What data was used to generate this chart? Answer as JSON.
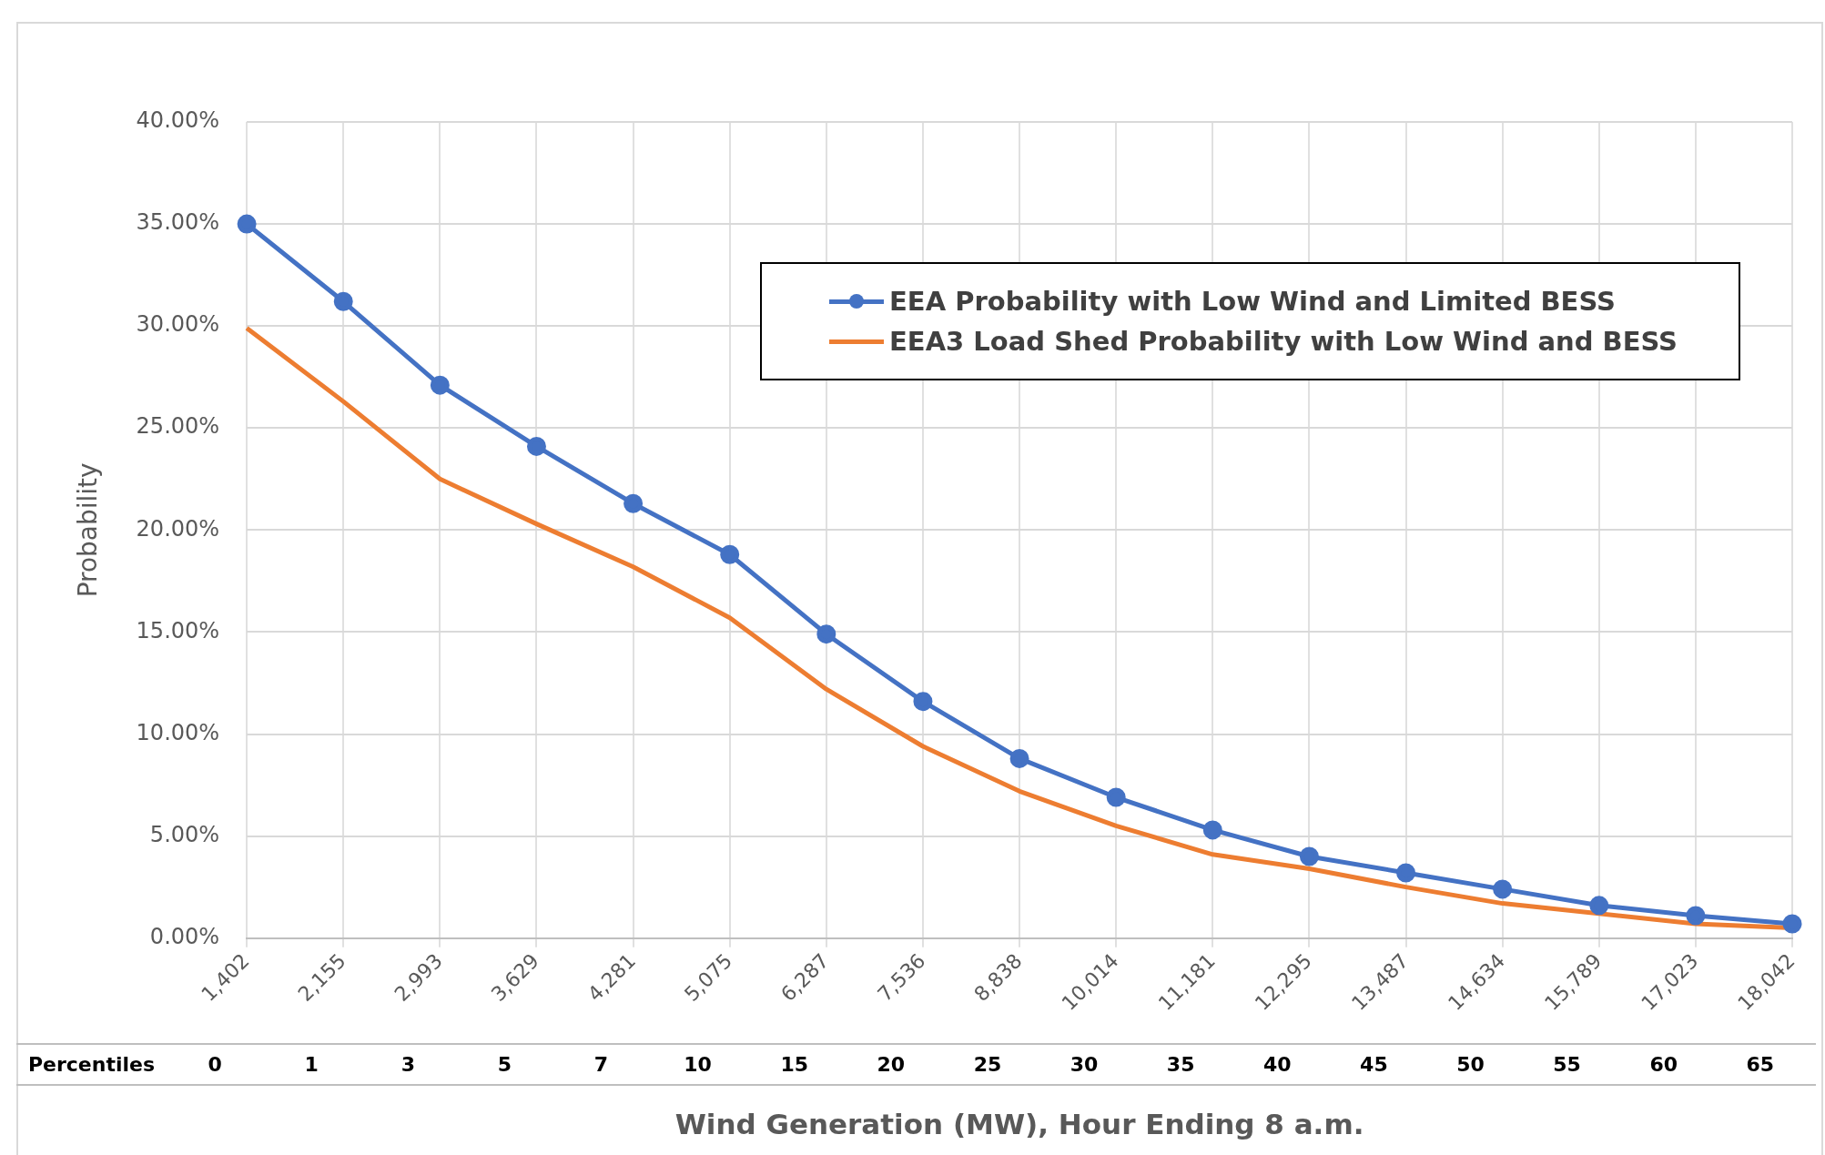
{
  "chart_data": {
    "type": "line",
    "xlabel": "Wind Generation (MW), Hour Ending 8 a.m.",
    "ylabel": "Probability",
    "categories": [
      "1,402",
      "2,155",
      "2,993",
      "3,629",
      "4,281",
      "5,075",
      "6,287",
      "7,536",
      "8,838",
      "10,014",
      "11,181",
      "12,295",
      "13,487",
      "14,634",
      "15,789",
      "17,023",
      "18,042"
    ],
    "series": [
      {
        "name": "EEA Probability with Low Wind and Limited BESS",
        "color": "#4472c4",
        "marker": "circle",
        "values": [
          35.0,
          31.2,
          27.1,
          24.1,
          21.3,
          18.8,
          14.9,
          11.6,
          8.8,
          6.9,
          5.3,
          4.0,
          3.2,
          2.4,
          1.6,
          1.1,
          0.7
        ]
      },
      {
        "name": "EEA3 Load Shed Probability with Low Wind and BESS",
        "color": "#ed7d31",
        "marker": "none",
        "values": [
          29.9,
          26.3,
          22.5,
          20.3,
          18.2,
          15.7,
          12.2,
          9.4,
          7.2,
          5.5,
          4.1,
          3.4,
          2.5,
          1.7,
          1.2,
          0.7,
          0.5
        ]
      }
    ],
    "ylim": [
      0,
      40
    ],
    "yticks": [
      {
        "value": 0,
        "label": "0.00%"
      },
      {
        "value": 5,
        "label": "5.00%"
      },
      {
        "value": 10,
        "label": "10.00%"
      },
      {
        "value": 15,
        "label": "15.00%"
      },
      {
        "value": 20,
        "label": "20.00%"
      },
      {
        "value": 25,
        "label": "25.00%"
      },
      {
        "value": 30,
        "label": "30.00%"
      },
      {
        "value": 35,
        "label": "35.00%"
      },
      {
        "value": 40,
        "label": "40.00%"
      }
    ],
    "grid": true,
    "legend": "top right",
    "line_style": "solid",
    "annotations": [
      "Percentiles",
      "0 1 3 5 7 10 15 20 25 30 35 40 45 50 55 60 65"
    ]
  }
}
